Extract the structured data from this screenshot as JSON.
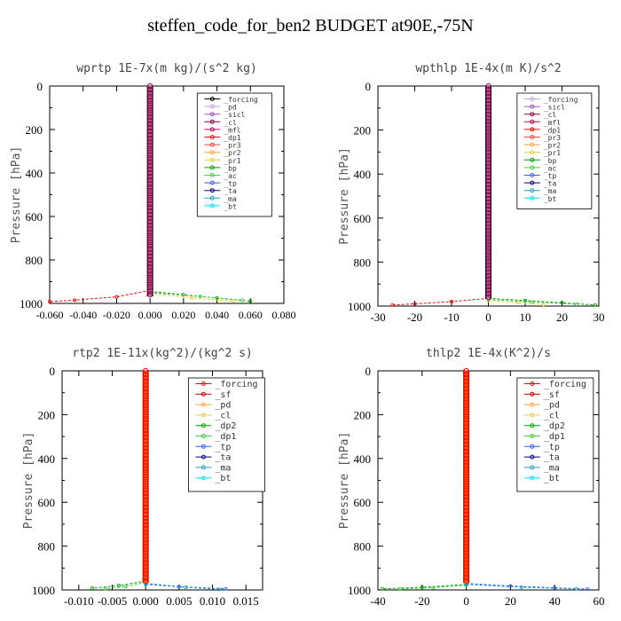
{
  "title": "steffen_code_for_ben2  BUDGET at90E,-75N",
  "chart_data": [
    {
      "type": "line",
      "title": "wprtp  1E-7x(m kg)/(s^2 kg)",
      "ylabel": "Pressure [hPa]",
      "xlim": [
        -0.06,
        0.08
      ],
      "ylim": [
        1000,
        0
      ],
      "xticks": [
        "-0.060",
        "-0.040",
        "-0.020",
        "0.000",
        "0.020",
        "0.040",
        "0.060",
        "0.080"
      ],
      "yticks": [
        "0",
        "200",
        "400",
        "600",
        "800",
        "1000"
      ],
      "xtick_values": [
        -0.06,
        -0.04,
        -0.02,
        0.0,
        0.02,
        0.04,
        0.06,
        0.08
      ],
      "ytick_values": [
        0,
        200,
        400,
        600,
        800,
        1000
      ],
      "legend_position": "top-right",
      "series": [
        {
          "name": "_forcing",
          "color": "#000000"
        },
        {
          "name": "_pd",
          "color": "#c8a0e0"
        },
        {
          "name": "_sicl",
          "color": "#a050c0"
        },
        {
          "name": "_cl",
          "color": "#8b0040"
        },
        {
          "name": "_mfl",
          "color": "#c00050"
        },
        {
          "name": "_dp1",
          "color": "#ff0000"
        },
        {
          "name": "_pr3",
          "color": "#ff4040"
        },
        {
          "name": "_pr2",
          "color": "#ffa040"
        },
        {
          "name": "_pr1",
          "color": "#e8d040"
        },
        {
          "name": "_bp",
          "color": "#00a000"
        },
        {
          "name": "_ac",
          "color": "#40d040"
        },
        {
          "name": "_tp",
          "color": "#3060ff"
        },
        {
          "name": "_ta",
          "color": "#000080"
        },
        {
          "name": "_ma",
          "color": "#20a0c0"
        },
        {
          "name": "_bt",
          "color": "#00e0ff"
        }
      ],
      "profiles": [
        {
          "series": "_dp1",
          "color": "#ff0000",
          "points": [
            [
              0.0,
              940
            ],
            [
              -0.02,
              970
            ],
            [
              -0.045,
              985
            ],
            [
              -0.06,
              992
            ]
          ]
        },
        {
          "series": "_bp",
          "color": "#00a000",
          "points": [
            [
              0.0,
              945
            ],
            [
              0.02,
              960
            ],
            [
              0.04,
              975
            ],
            [
              0.06,
              990
            ]
          ]
        },
        {
          "series": "_ac",
          "color": "#40d040",
          "points": [
            [
              0.0,
              950
            ],
            [
              0.03,
              968
            ],
            [
              0.055,
              985
            ]
          ]
        },
        {
          "series": "_pr1",
          "color": "#e8d040",
          "points": [
            [
              0.0,
              955
            ],
            [
              0.025,
              975
            ],
            [
              0.05,
              990
            ]
          ]
        }
      ]
    },
    {
      "type": "line",
      "title": "wpthlp  1E-4x(m K)/s^2",
      "ylabel": "Pressure [hPa]",
      "xlim": [
        -30,
        30
      ],
      "ylim": [
        1000,
        0
      ],
      "xticks": [
        "-30",
        "-20",
        "-10",
        "0",
        "10",
        "20",
        "30"
      ],
      "yticks": [
        "0",
        "200",
        "400",
        "600",
        "800",
        "1000"
      ],
      "xtick_values": [
        -30,
        -20,
        -10,
        0,
        10,
        20,
        30
      ],
      "ytick_values": [
        0,
        200,
        400,
        600,
        800,
        1000
      ],
      "legend_position": "top-right",
      "series": [
        {
          "name": "_forcing",
          "color": "#c8a0e0"
        },
        {
          "name": "_sicl",
          "color": "#a050c0"
        },
        {
          "name": "_cl",
          "color": "#8b0040"
        },
        {
          "name": "_mfl",
          "color": "#c00050"
        },
        {
          "name": "_dp1",
          "color": "#ff0000"
        },
        {
          "name": "_pr3",
          "color": "#ff4040"
        },
        {
          "name": "_pr2",
          "color": "#ffa040"
        },
        {
          "name": "_pr1",
          "color": "#e8d040"
        },
        {
          "name": "_bp",
          "color": "#00a000"
        },
        {
          "name": "_ac",
          "color": "#40d040"
        },
        {
          "name": "_tp",
          "color": "#3060ff"
        },
        {
          "name": "_ta",
          "color": "#000080"
        },
        {
          "name": "_ma",
          "color": "#20a0c0"
        },
        {
          "name": "_bt",
          "color": "#00e0ff"
        }
      ],
      "profiles": [
        {
          "series": "_dp1",
          "color": "#ff0000",
          "points": [
            [
              0,
              965
            ],
            [
              -10,
              980
            ],
            [
              -20,
              990
            ],
            [
              -26,
              995
            ]
          ]
        },
        {
          "series": "_bp",
          "color": "#00a000",
          "points": [
            [
              0,
              965
            ],
            [
              10,
              975
            ],
            [
              20,
              985
            ],
            [
              29,
              995
            ]
          ]
        },
        {
          "series": "_pr1",
          "color": "#e8d040",
          "points": [
            [
              0,
              975
            ],
            [
              8,
              985
            ],
            [
              15,
              993
            ]
          ]
        },
        {
          "series": "_ac",
          "color": "#40d040",
          "points": [
            [
              0,
              970
            ],
            [
              12,
              982
            ],
            [
              24,
              992
            ]
          ]
        }
      ]
    },
    {
      "type": "line",
      "title": "rtp2  1E-11x(kg^2)/(kg^2 s)",
      "ylabel": "Pressure [hPa]",
      "xlim": [
        -0.0125,
        0.0175
      ],
      "ylim": [
        1000,
        0
      ],
      "xticks": [
        "-0.010",
        "-0.005",
        "0.000",
        "0.005",
        "0.010",
        "0.015"
      ],
      "yticks": [
        "0",
        "200",
        "400",
        "600",
        "800",
        "1000"
      ],
      "xtick_values": [
        -0.01,
        -0.005,
        0.0,
        0.005,
        0.01,
        0.015
      ],
      "ytick_values": [
        0,
        200,
        400,
        600,
        800,
        1000
      ],
      "legend_position": "top-right",
      "series": [
        {
          "name": "_forcing",
          "color": "#ff0000"
        },
        {
          "name": "_sf",
          "color": "#c00000"
        },
        {
          "name": "_pd",
          "color": "#ffa040"
        },
        {
          "name": "_cl",
          "color": "#e8d040"
        },
        {
          "name": "_dp2",
          "color": "#00a000"
        },
        {
          "name": "_dp1",
          "color": "#40d040"
        },
        {
          "name": "_tp",
          "color": "#3060ff"
        },
        {
          "name": "_ta",
          "color": "#000080"
        },
        {
          "name": "_ma",
          "color": "#20a0c0"
        },
        {
          "name": "_bt",
          "color": "#00e0ff"
        }
      ],
      "profiles": [
        {
          "series": "_dp2",
          "color": "#00a000",
          "points": [
            [
              0.0,
              960
            ],
            [
              -0.004,
              980
            ],
            [
              -0.008,
              992
            ]
          ]
        },
        {
          "series": "_dp1",
          "color": "#40d040",
          "points": [
            [
              0.0,
              965
            ],
            [
              -0.003,
              985
            ],
            [
              -0.006,
              995
            ]
          ]
        },
        {
          "series": "_tp",
          "color": "#3060ff",
          "points": [
            [
              0.0,
              970
            ],
            [
              0.005,
              985
            ],
            [
              0.012,
              995
            ]
          ]
        },
        {
          "series": "_ma",
          "color": "#20a0c0",
          "points": [
            [
              0.0,
              975
            ],
            [
              0.006,
              988
            ],
            [
              0.011,
              997
            ]
          ]
        }
      ]
    },
    {
      "type": "line",
      "title": "thlp2  1E-4x(K^2)/s",
      "ylabel": "Pressure [hPa]",
      "xlim": [
        -40,
        60
      ],
      "ylim": [
        1000,
        0
      ],
      "xticks": [
        "-40",
        "-20",
        "0",
        "20",
        "40",
        "60"
      ],
      "yticks": [
        "0",
        "200",
        "400",
        "600",
        "800",
        "1000"
      ],
      "xtick_values": [
        -40,
        -20,
        0,
        20,
        40,
        60
      ],
      "ytick_values": [
        0,
        200,
        400,
        600,
        800,
        1000
      ],
      "legend_position": "top-right",
      "series": [
        {
          "name": "_forcing",
          "color": "#ff0000"
        },
        {
          "name": "_sf",
          "color": "#c00000"
        },
        {
          "name": "_pd",
          "color": "#ffa040"
        },
        {
          "name": "_cl",
          "color": "#e8d040"
        },
        {
          "name": "_dp2",
          "color": "#00a000"
        },
        {
          "name": "_dp1",
          "color": "#40d040"
        },
        {
          "name": "_tp",
          "color": "#3060ff"
        },
        {
          "name": "_ta",
          "color": "#000080"
        },
        {
          "name": "_ma",
          "color": "#20a0c0"
        },
        {
          "name": "_bt",
          "color": "#00e0ff"
        }
      ],
      "profiles": [
        {
          "series": "_dp2",
          "color": "#00a000",
          "points": [
            [
              0,
              975
            ],
            [
              -20,
              988
            ],
            [
              -38,
              995
            ]
          ]
        },
        {
          "series": "_dp1",
          "color": "#40d040",
          "points": [
            [
              0,
              978
            ],
            [
              -15,
              990
            ],
            [
              -30,
              996
            ]
          ]
        },
        {
          "series": "_tp",
          "color": "#3060ff",
          "points": [
            [
              0,
              970
            ],
            [
              20,
              982
            ],
            [
              40,
              990
            ],
            [
              55,
              996
            ]
          ]
        },
        {
          "series": "_ma",
          "color": "#20a0c0",
          "points": [
            [
              0,
              975
            ],
            [
              25,
              988
            ],
            [
              50,
              995
            ]
          ]
        }
      ]
    }
  ]
}
